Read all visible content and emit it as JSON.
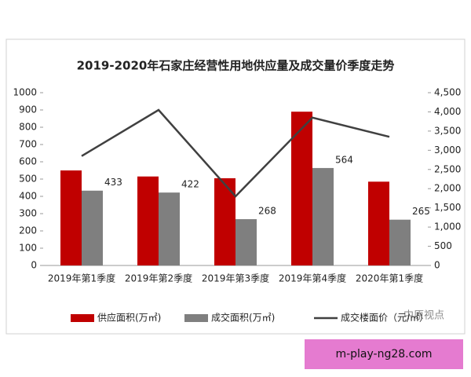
{
  "chart_data": {
    "type": "combo",
    "title": "2019-2020年石家庄经营性用地供应量及成交量价季度走势",
    "categories": [
      "2019年第1季度",
      "2019年第2季度",
      "2019年第3季度",
      "2019年第4季度",
      "2020年第1季度"
    ],
    "series": [
      {
        "name": "供应面积(万㎡)",
        "type": "bar",
        "color": "#c00000",
        "values": [
          550,
          515,
          505,
          890,
          485
        ]
      },
      {
        "name": "成交面积(万㎡)",
        "type": "bar",
        "color": "#7f7f7f",
        "values": [
          433,
          422,
          268,
          564,
          265
        ],
        "data_labels": true
      },
      {
        "name": "成交楼面价（元/㎡）",
        "type": "line",
        "color": "#404040",
        "axis": "y2",
        "values": [
          2850,
          4050,
          1800,
          3850,
          3350
        ]
      }
    ],
    "ylim": [
      0,
      1000
    ],
    "yticks": [
      0,
      100,
      200,
      300,
      400,
      500,
      600,
      700,
      800,
      900,
      1000
    ],
    "y2lim": [
      0,
      4500
    ],
    "y2ticks": [
      0,
      500,
      {
        "value": 1000,
        "label": "1,000"
      },
      {
        "value": 1500,
        "label": "1,500"
      },
      {
        "value": 2000,
        "label": "2,000"
      },
      {
        "value": 2500,
        "label": "2,500"
      },
      {
        "value": 3000,
        "label": "3,000"
      },
      {
        "value": 3500,
        "label": "3,500"
      },
      {
        "value": 4000,
        "label": "4,000"
      },
      {
        "value": 4500,
        "label": "4,500"
      }
    ],
    "legend": "bottom"
  },
  "watermark": "中原视点",
  "banner": "m-play-ng28.com"
}
